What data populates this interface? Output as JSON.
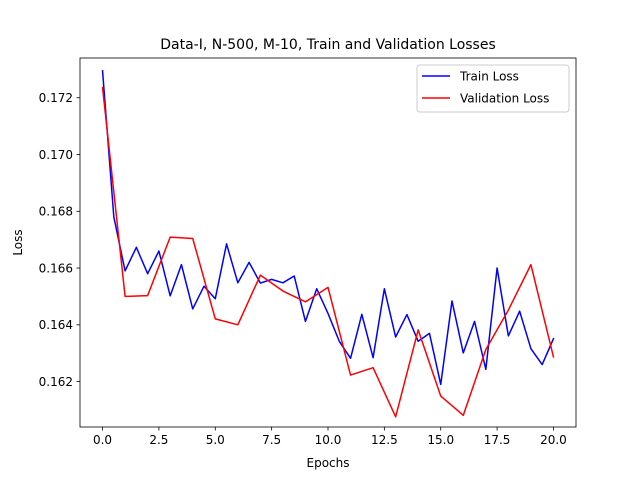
{
  "chart_data": {
    "type": "line",
    "title": "Data-I, N-500, M-10, Train and Validation Losses",
    "xlabel": "Epochs",
    "ylabel": "Loss",
    "xlim": [
      -1.0,
      21.0
    ],
    "ylim": [
      0.1604,
      0.1734
    ],
    "xticks": [
      0.0,
      2.5,
      5.0,
      7.5,
      10.0,
      12.5,
      15.0,
      17.5,
      20.0
    ],
    "xtick_labels": [
      "0.0",
      "2.5",
      "5.0",
      "7.5",
      "10.0",
      "12.5",
      "15.0",
      "17.5",
      "20.0"
    ],
    "yticks": [
      0.162,
      0.164,
      0.166,
      0.168,
      0.17,
      0.172
    ],
    "ytick_labels": [
      "0.162",
      "0.164",
      "0.166",
      "0.168",
      "0.170",
      "0.172"
    ],
    "grid": false,
    "legend_position": "top-right",
    "series": [
      {
        "name": "Train Loss",
        "color": "#0000ff",
        "x": [
          0,
          0.5,
          1,
          1.5,
          2,
          2.5,
          3,
          3.5,
          4,
          4.5,
          5,
          5.5,
          6,
          6.5,
          7,
          7.5,
          8,
          8.5,
          9,
          9.5,
          10,
          10.5,
          11,
          11.5,
          12,
          12.5,
          13,
          13.5,
          14,
          14.5,
          15,
          15.5,
          16,
          16.5,
          17,
          17.5,
          18,
          18.5,
          19,
          19.5,
          20
        ],
        "y": [
          0.17295,
          0.1678,
          0.1659,
          0.16673,
          0.1658,
          0.1666,
          0.16502,
          0.16612,
          0.16456,
          0.16536,
          0.16492,
          0.16685,
          0.16548,
          0.1662,
          0.16547,
          0.1656,
          0.16548,
          0.16572,
          0.16412,
          0.16527,
          0.1644,
          0.16342,
          0.16282,
          0.16437,
          0.16284,
          0.16527,
          0.16357,
          0.16436,
          0.16342,
          0.1637,
          0.1619,
          0.16484,
          0.16301,
          0.16412,
          0.16243,
          0.166,
          0.16361,
          0.16448,
          0.16316,
          0.1626,
          0.16351
        ]
      },
      {
        "name": "Validation Loss",
        "color": "#ff0000",
        "x": [
          0,
          1,
          2,
          3,
          4,
          5,
          6,
          7,
          8,
          9,
          10,
          11,
          12,
          13,
          14,
          15,
          16,
          17,
          18,
          19,
          20
        ],
        "y": [
          0.17236,
          0.165,
          0.16503,
          0.16709,
          0.16704,
          0.16421,
          0.164,
          0.16575,
          0.16519,
          0.16481,
          0.16532,
          0.16223,
          0.16249,
          0.16076,
          0.16382,
          0.16149,
          0.16081,
          0.16313,
          0.16452,
          0.16612,
          0.16287
        ]
      }
    ]
  }
}
